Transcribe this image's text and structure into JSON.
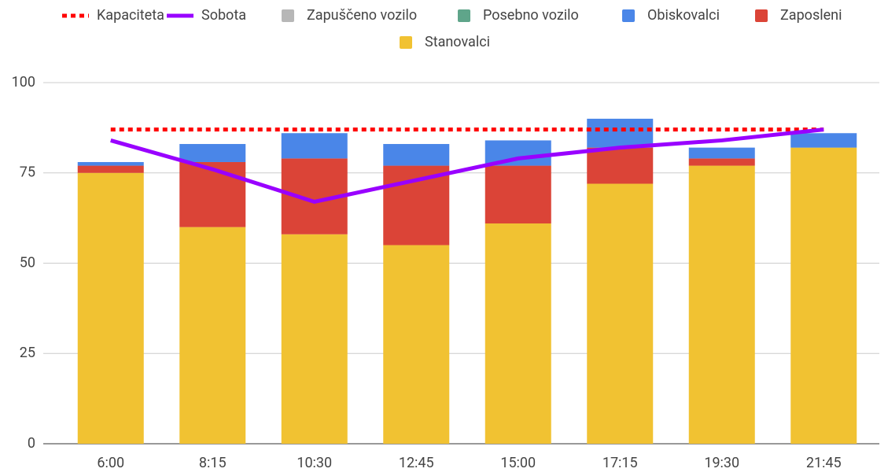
{
  "chart_data": {
    "type": "bar",
    "stacked": true,
    "categories": [
      "6:00",
      "8:15",
      "10:30",
      "12:45",
      "15:00",
      "17:15",
      "19:30",
      "21:45"
    ],
    "series": [
      {
        "name": "Kapaciteta",
        "type": "line",
        "style": "dotted",
        "color": "#ff0000",
        "values": [
          87,
          87,
          87,
          87,
          87,
          87,
          87,
          87
        ]
      },
      {
        "name": "Sobota",
        "type": "line",
        "color": "#9900ff",
        "values": [
          84,
          76,
          67,
          73,
          79,
          82,
          84,
          87
        ]
      },
      {
        "name": "Zapuščeno vozilo",
        "type": "bar",
        "color": "#b7b7b7",
        "values": [
          0,
          0,
          0,
          0,
          0,
          0,
          0,
          0
        ]
      },
      {
        "name": "Posebno vozilo",
        "type": "bar",
        "color": "#5fa58a",
        "values": [
          0,
          0,
          0,
          0,
          0,
          0,
          0,
          0
        ]
      },
      {
        "name": "Obiskovalci",
        "type": "bar",
        "color": "#4a86e8",
        "values": [
          1,
          5,
          7,
          6,
          7,
          8,
          3,
          4
        ]
      },
      {
        "name": "Zaposleni",
        "type": "bar",
        "color": "#db4437",
        "values": [
          2,
          18,
          21,
          22,
          16,
          10,
          2,
          0
        ]
      },
      {
        "name": "Stanovalci",
        "type": "bar",
        "color": "#f1c232",
        "values": [
          75,
          60,
          58,
          55,
          61,
          72,
          77,
          82
        ]
      }
    ],
    "ylim": [
      0,
      100
    ],
    "yticks": [
      0,
      25,
      50,
      75,
      100
    ],
    "grid": true,
    "legend": "top"
  }
}
